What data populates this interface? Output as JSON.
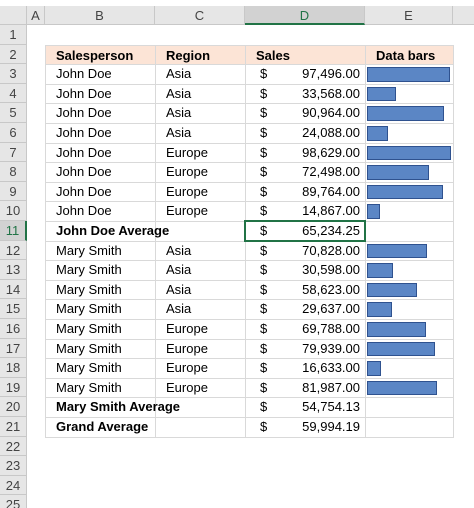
{
  "sheet": {
    "column_headers": [
      "A",
      "B",
      "C",
      "D",
      "E"
    ],
    "row_numbers": [
      1,
      2,
      3,
      4,
      5,
      6,
      7,
      8,
      9,
      10,
      11,
      12,
      13,
      14,
      15,
      16,
      17,
      18,
      19,
      20,
      21,
      22,
      23,
      24,
      25
    ],
    "table": {
      "header": [
        "Salesperson",
        "Region",
        "Sales",
        "Data bars"
      ],
      "rows": [
        {
          "salesperson": "John Doe",
          "region": "Asia",
          "currency": "$",
          "sales": 97496,
          "sales_label": "97,496.00"
        },
        {
          "salesperson": "John Doe",
          "region": "Asia",
          "currency": "$",
          "sales": 33568,
          "sales_label": "33,568.00"
        },
        {
          "salesperson": "John Doe",
          "region": "Asia",
          "currency": "$",
          "sales": 90964,
          "sales_label": "90,964.00"
        },
        {
          "salesperson": "John Doe",
          "region": "Asia",
          "currency": "$",
          "sales": 24088,
          "sales_label": "24,088.00"
        },
        {
          "salesperson": "John Doe",
          "region": "Europe",
          "currency": "$",
          "sales": 98629,
          "sales_label": "98,629.00"
        },
        {
          "salesperson": "John Doe",
          "region": "Europe",
          "currency": "$",
          "sales": 72498,
          "sales_label": "72,498.00"
        },
        {
          "salesperson": "John Doe",
          "region": "Europe",
          "currency": "$",
          "sales": 89764,
          "sales_label": "89,764.00"
        },
        {
          "salesperson": "John Doe",
          "region": "Europe",
          "currency": "$",
          "sales": 14867,
          "sales_label": "14,867.00"
        },
        {
          "salesperson": "John Doe Average",
          "currency": "$",
          "sales_label": "65,234.25"
        },
        {
          "salesperson": "Mary Smith",
          "region": "Asia",
          "currency": "$",
          "sales": 70828,
          "sales_label": "70,828.00"
        },
        {
          "salesperson": "Mary Smith",
          "region": "Asia",
          "currency": "$",
          "sales": 30598,
          "sales_label": "30,598.00"
        },
        {
          "salesperson": "Mary Smith",
          "region": "Asia",
          "currency": "$",
          "sales": 58623,
          "sales_label": "58,623.00"
        },
        {
          "salesperson": "Mary Smith",
          "region": "Asia",
          "currency": "$",
          "sales": 29637,
          "sales_label": "29,637.00"
        },
        {
          "salesperson": "Mary Smith",
          "region": "Europe",
          "currency": "$",
          "sales": 69788,
          "sales_label": "69,788.00"
        },
        {
          "salesperson": "Mary Smith",
          "region": "Europe",
          "currency": "$",
          "sales": 79939,
          "sales_label": "79,939.00"
        },
        {
          "salesperson": "Mary Smith",
          "region": "Europe",
          "currency": "$",
          "sales": 16633,
          "sales_label": "16,633.00"
        },
        {
          "salesperson": "Mary Smith",
          "region": "Europe",
          "currency": "$",
          "sales": 81987,
          "sales_label": "81,987.00"
        },
        {
          "salesperson": "Mary Smith Average",
          "currency": "$",
          "sales_label": "54,754.13"
        },
        {
          "salesperson": "Grand Average",
          "currency": "$",
          "sales_label": "59,994.19"
        }
      ]
    }
  }
}
